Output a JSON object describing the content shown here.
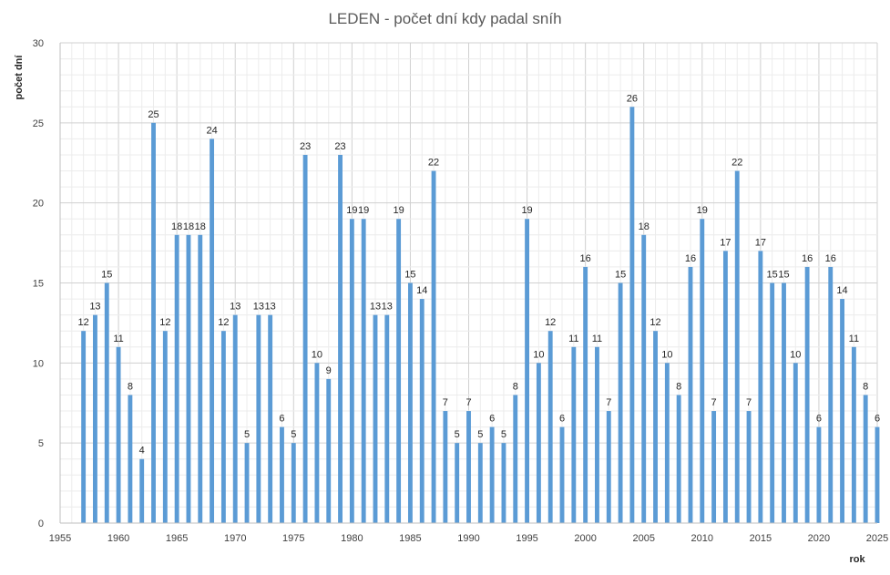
{
  "chart_data": {
    "type": "bar",
    "title": "LEDEN - počet dní kdy padal sníh",
    "xlabel": "rok",
    "ylabel": "počet dní",
    "xlim": [
      1955,
      2025
    ],
    "ylim": [
      0,
      30
    ],
    "x_major_step": 5,
    "y_major_step": 5,
    "grid": true,
    "bar_color": "#5b9bd5",
    "x": [
      1957,
      1958,
      1959,
      1960,
      1961,
      1962,
      1963,
      1964,
      1965,
      1966,
      1967,
      1968,
      1969,
      1970,
      1971,
      1972,
      1973,
      1974,
      1975,
      1976,
      1977,
      1978,
      1979,
      1980,
      1981,
      1982,
      1983,
      1984,
      1985,
      1986,
      1987,
      1988,
      1989,
      1990,
      1991,
      1992,
      1993,
      1994,
      1995,
      1996,
      1997,
      1998,
      1999,
      2000,
      2001,
      2002,
      2003,
      2004,
      2005,
      2006,
      2007,
      2008,
      2009,
      2010,
      2011,
      2012,
      2013,
      2014,
      2015,
      2016,
      2017,
      2018,
      2019,
      2020,
      2021,
      2022,
      2023,
      2024,
      2025
    ],
    "values": [
      12,
      13,
      15,
      11,
      8,
      4,
      25,
      12,
      18,
      18,
      18,
      24,
      12,
      13,
      5,
      13,
      13,
      6,
      5,
      23,
      10,
      9,
      23,
      19,
      19,
      13,
      13,
      19,
      15,
      14,
      22,
      7,
      5,
      7,
      5,
      6,
      5,
      8,
      19,
      10,
      12,
      6,
      11,
      16,
      11,
      7,
      15,
      26,
      18,
      12,
      10,
      8,
      16,
      19,
      7,
      17,
      22,
      7,
      17,
      15,
      15,
      10,
      16,
      6,
      16,
      14,
      11,
      8,
      6
    ]
  }
}
